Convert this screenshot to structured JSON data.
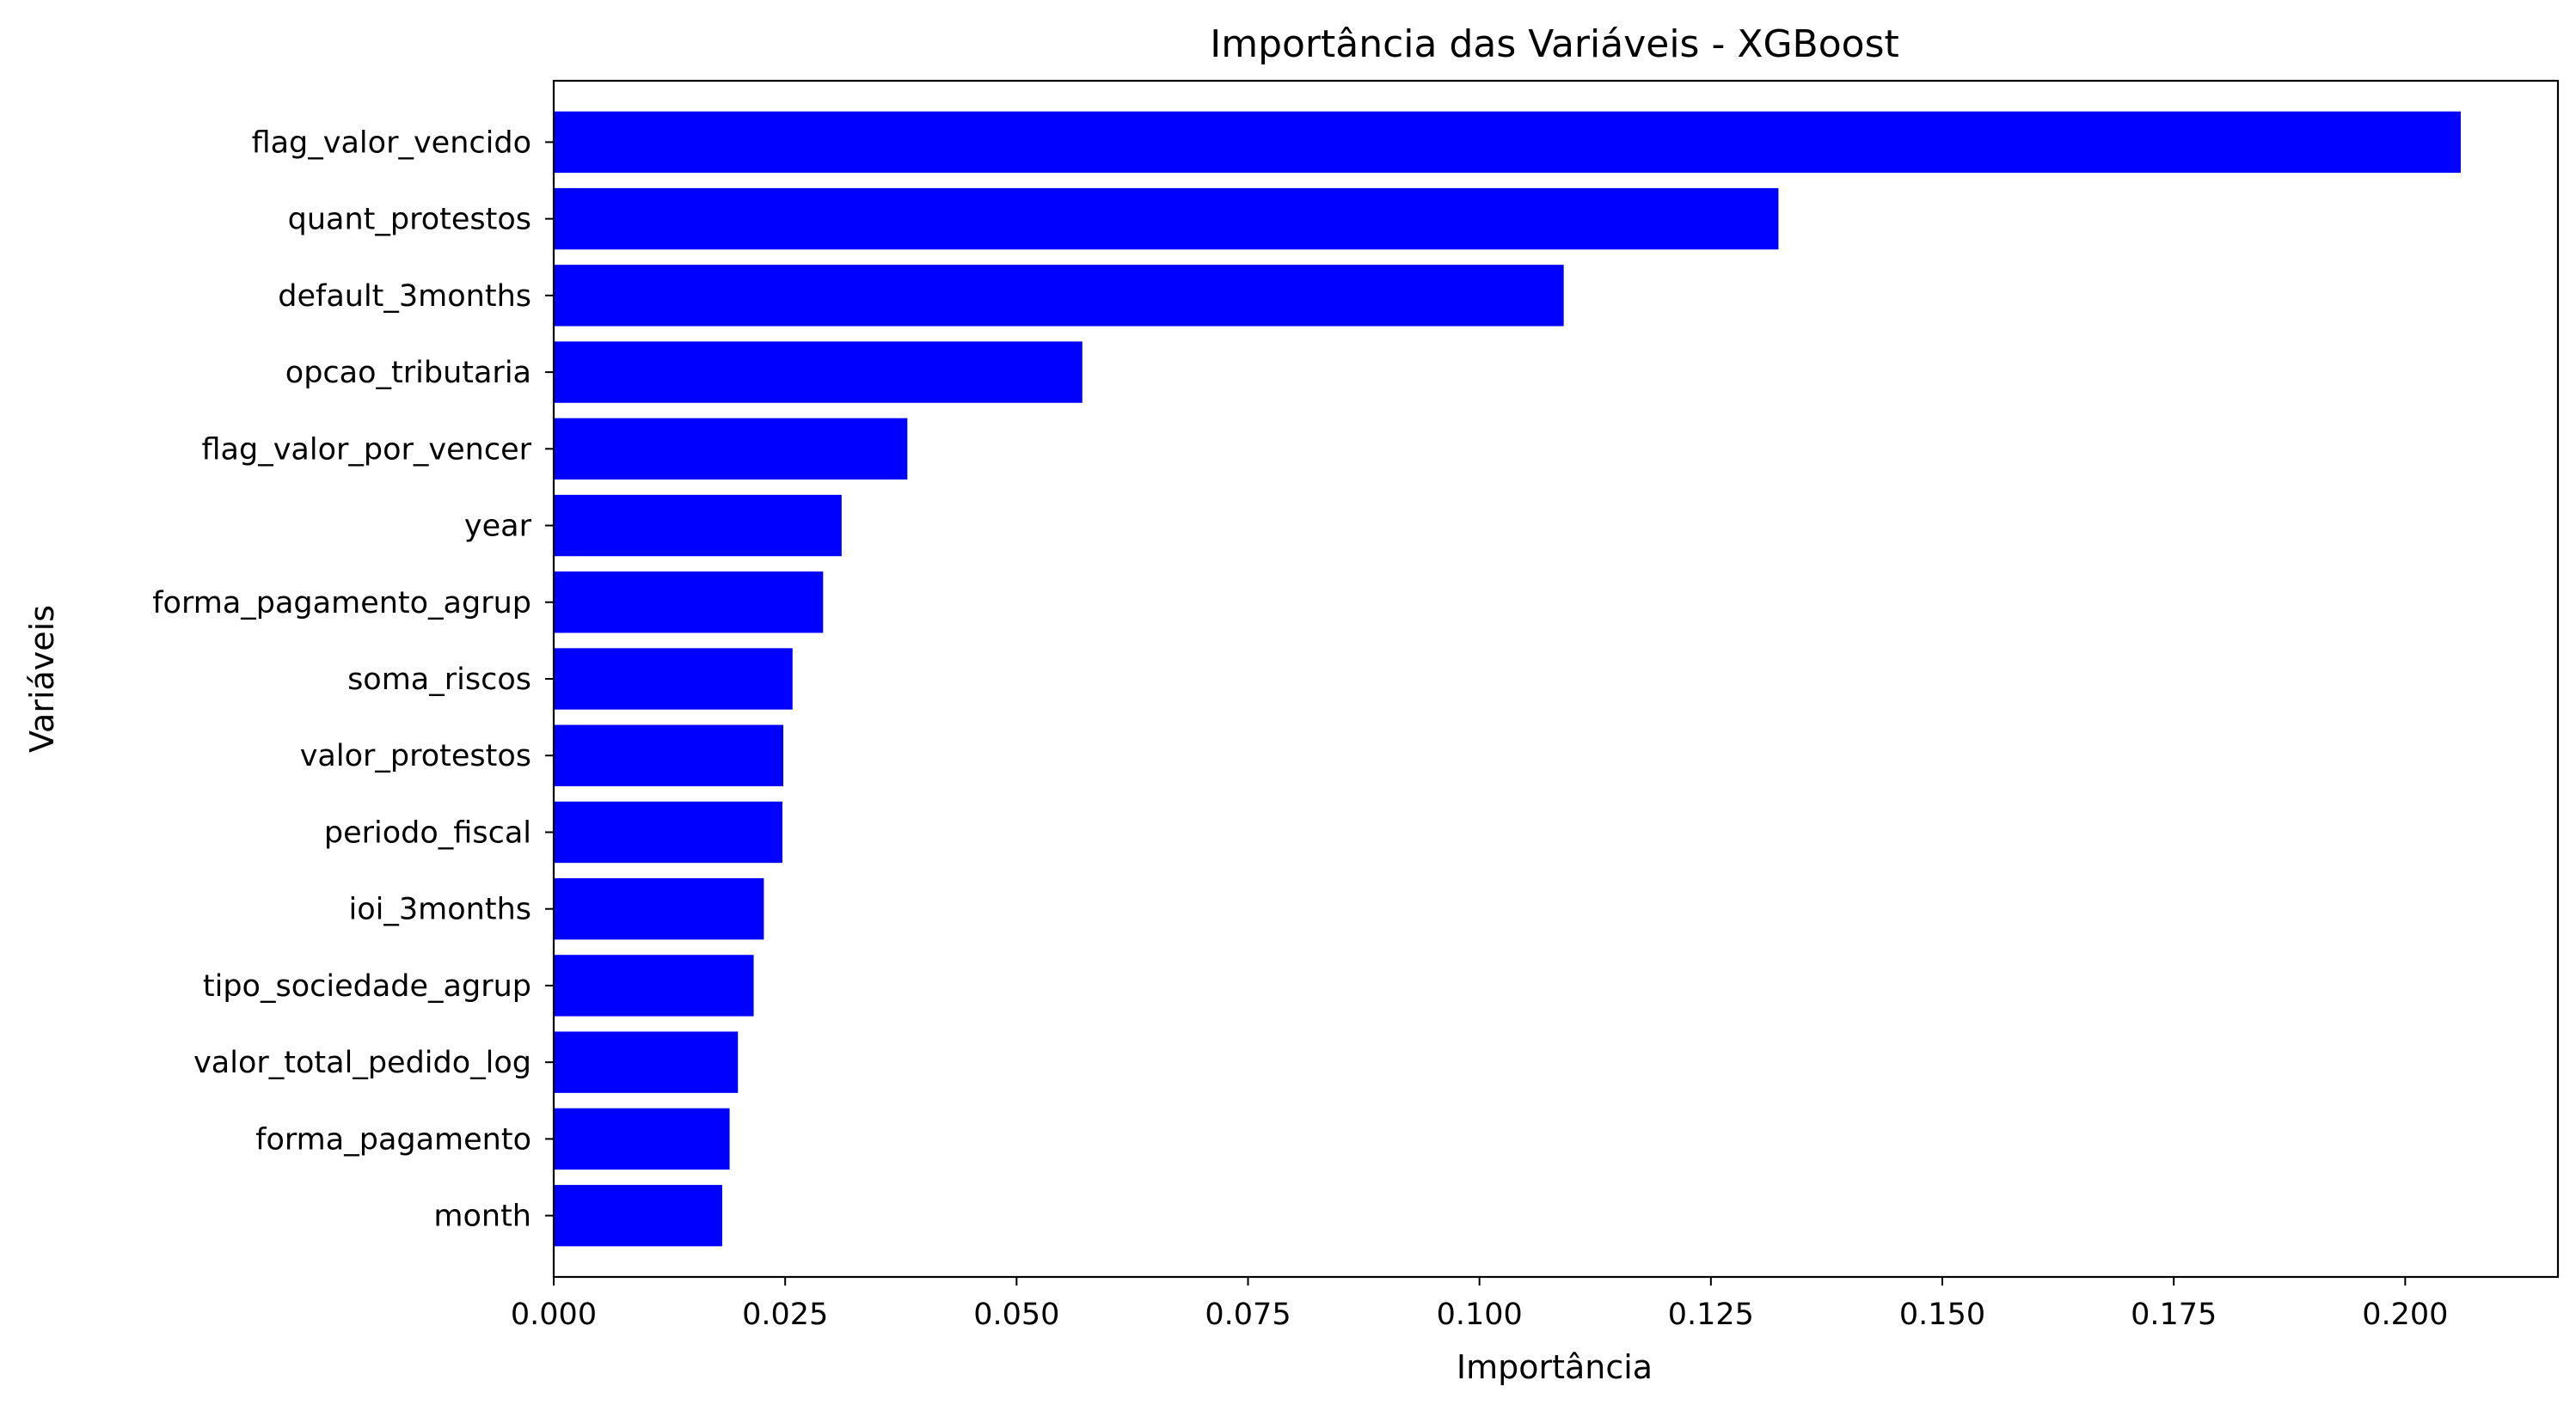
{
  "chart_data": {
    "type": "bar",
    "orientation": "horizontal",
    "title": "Importância das Variáveis - XGBoost",
    "xlabel": "Importância",
    "ylabel": "Variáveis",
    "bar_color": "#0000ff",
    "xlim": [
      0,
      0.2165
    ],
    "xticks": [
      0.0,
      0.025,
      0.05,
      0.075,
      0.1,
      0.125,
      0.15,
      0.175,
      0.2
    ],
    "xtick_labels": [
      "0.000",
      "0.025",
      "0.050",
      "0.075",
      "0.100",
      "0.125",
      "0.150",
      "0.175",
      "0.200"
    ],
    "grid": false,
    "legend": "none",
    "categories": [
      "flag_valor_vencido",
      "quant_protestos",
      "default_3months",
      "opcao_tributaria",
      "flag_valor_por_vencer",
      "year",
      "forma_pagamento_agrup",
      "soma_riscos",
      "valor_protestos",
      "periodo_fiscal",
      "ioi_3months",
      "tipo_sociedade_agrup",
      "valor_total_pedido_log",
      "forma_pagamento",
      "month"
    ],
    "values": [
      0.206,
      0.1323,
      0.1091,
      0.0571,
      0.0382,
      0.0311,
      0.0291,
      0.0258,
      0.0248,
      0.0247,
      0.0227,
      0.0216,
      0.0199,
      0.019,
      0.0182
    ]
  }
}
